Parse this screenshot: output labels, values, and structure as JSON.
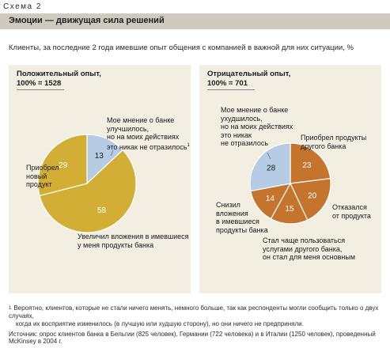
{
  "header": {
    "scheme_label": "Схема 2",
    "title": "Эмоции — движущая сила решений",
    "subtitle": "Клиенты, за последние 2 года имевшие опыт общения с компанией в важной для них ситуации, %"
  },
  "chart_data": [
    {
      "type": "pie",
      "title": "Положительный опыт,",
      "subtitle": "100% = 1528",
      "slices": [
        {
          "value": 13,
          "label": "Мое мнение о банке улучшилось, но на моих действиях это никак не отразилось",
          "footnote_mark": "1",
          "color": "#b6cce4",
          "label_color": "#1a1a1a"
        },
        {
          "value": 58,
          "label": "Увеличил вложения в имевшиеся у меня продукты банка",
          "color": "#d2ae35",
          "label_color": "#ffffff"
        },
        {
          "value": 29,
          "label": "Приобрел новый продукт",
          "color": "#d2ae35",
          "label_color": "#ffffff"
        }
      ]
    },
    {
      "type": "pie",
      "title": "Отрицательный опыт,",
      "subtitle": "100% = 701",
      "slices": [
        {
          "value": 23,
          "label": "Приобрел продукты другого банка",
          "color": "#c4742d",
          "label_color": "#ffffff"
        },
        {
          "value": 20,
          "label": "Отказался от продукта",
          "color": "#c4742d",
          "label_color": "#ffffff"
        },
        {
          "value": 15,
          "label": "Стал чаще пользоваться услугами другого банка, он стал для меня основным",
          "color": "#c4742d",
          "label_color": "#ffffff"
        },
        {
          "value": 14,
          "label": "Снизил вложения в имевшиеся продукты банка",
          "color": "#c4742d",
          "label_color": "#ffffff"
        },
        {
          "value": 28,
          "label": "Мое мнение о банке ухудшилось, но на моих действиях это никак не отразилось",
          "color": "#b6cce4",
          "label_color": "#1a1a1a"
        }
      ]
    }
  ],
  "labels": {
    "left_top": [
      "Мое мнение о банке",
      "улучшилось,",
      "но на моих действиях",
      "это никак не отразилось"
    ],
    "left_top_mark": "1",
    "left_side": [
      "Приобрел",
      "новый",
      "продукт"
    ],
    "left_bottom": [
      "Увеличил вложения в имевшиеся",
      "у меня продукты банка"
    ],
    "right_top_left": [
      "Мое мнение о банке",
      "ухудшилось,",
      "но на моих действиях",
      "это никак",
      "не отразилось"
    ],
    "right_top_right": [
      "Приобрел продукты",
      "другого банка"
    ],
    "right_side": [
      "Отказался",
      "от продукта"
    ],
    "right_bottom_left": [
      "Снизил",
      "вложения",
      "в имевшиеся",
      "продукты банка"
    ],
    "right_bottom": [
      "Стал чаще пользоваться",
      "услугами другого банка,",
      "он стал для меня основным"
    ]
  },
  "footnote": {
    "mark": "1",
    "lines": [
      "Вероятно, клиентов, которые не стали ничего менять, немного больше, так как респонденты могли сообщить только о двух случаях,",
      "когда их восприятие изменилось (в лучшую или худшую сторону), но они ничего не предприняли."
    ]
  },
  "source": "Источник: опрос клиентов банка в Бельгии (825 человек), Германии (722 человека) и в Италии (1250 человек), проведенный McKinsey в 2004 г."
}
